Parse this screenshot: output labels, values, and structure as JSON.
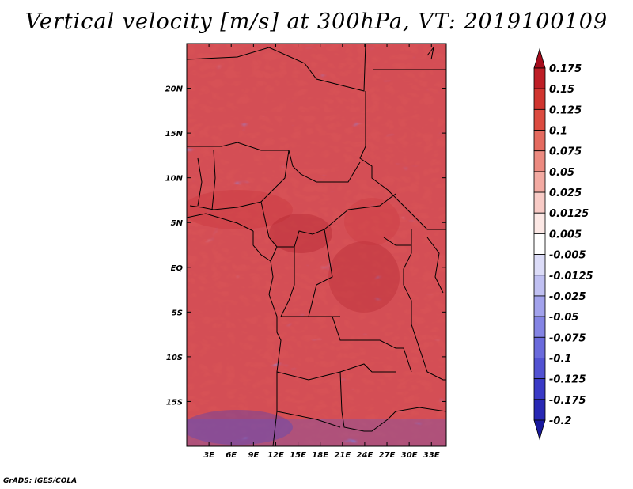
{
  "title": "Vertical velocity [m/s] at 300hPa, VT: 2019100109",
  "credit": "GrADS: IGES/COLA",
  "map": {
    "lon_range": [
      0,
      35
    ],
    "lat_range": [
      -20,
      25
    ],
    "lat_labels": [
      {
        "value": 20,
        "text": "20N"
      },
      {
        "value": 15,
        "text": "15N"
      },
      {
        "value": 10,
        "text": "10N"
      },
      {
        "value": 5,
        "text": "5N"
      },
      {
        "value": 0,
        "text": "EQ"
      },
      {
        "value": -5,
        "text": "5S"
      },
      {
        "value": -10,
        "text": "10S"
      },
      {
        "value": -15,
        "text": "15S"
      }
    ],
    "lon_labels": [
      {
        "value": 3,
        "text": "3E"
      },
      {
        "value": 6,
        "text": "6E"
      },
      {
        "value": 9,
        "text": "9E"
      },
      {
        "value": 12,
        "text": "12E"
      },
      {
        "value": 15,
        "text": "15E"
      },
      {
        "value": 18,
        "text": "18E"
      },
      {
        "value": 21,
        "text": "21E"
      },
      {
        "value": 24,
        "text": "24E"
      },
      {
        "value": 27,
        "text": "27E"
      },
      {
        "value": 30,
        "text": "30E"
      },
      {
        "value": 33,
        "text": "33E"
      }
    ]
  },
  "colorbar": {
    "labels": [
      "0.175",
      "0.15",
      "0.125",
      "0.1",
      "0.075",
      "0.05",
      "0.025",
      "0.0125",
      "0.005",
      "-0.005",
      "-0.0125",
      "-0.025",
      "-0.05",
      "-0.075",
      "-0.1",
      "-0.125",
      "-0.175",
      "-0.2"
    ],
    "colors": [
      "#a40c1c",
      "#be1e26",
      "#d0352f",
      "#dc4b40",
      "#e46a5f",
      "#ec8a80",
      "#f3aaa2",
      "#f8cbc6",
      "#fce8e5",
      "#ffffff",
      "#dcdcf8",
      "#c0c0f2",
      "#a2a2ec",
      "#8484e4",
      "#6a6adc",
      "#5252d2",
      "#3a3ac6",
      "#2828b4",
      "#18189c"
    ]
  },
  "colors": {
    "strong_up": "#c0222a",
    "weak_up": "#f4a6a0",
    "neutral": "#ffffff",
    "weak_down": "#b4b4f0",
    "strong_down": "#5050d0"
  }
}
